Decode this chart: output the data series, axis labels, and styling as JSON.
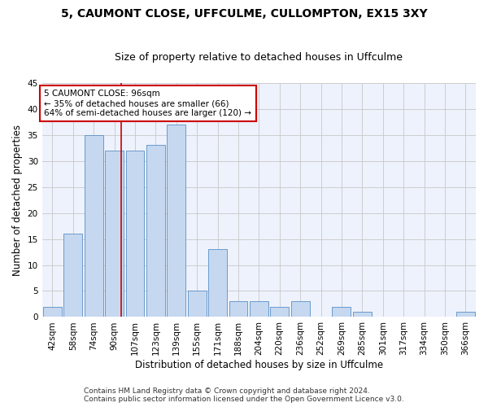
{
  "title": "5, CAUMONT CLOSE, UFFCULME, CULLOMPTON, EX15 3XY",
  "subtitle": "Size of property relative to detached houses in Uffculme",
  "xlabel": "Distribution of detached houses by size in Uffculme",
  "ylabel": "Number of detached properties",
  "bins": [
    "42sqm",
    "58sqm",
    "74sqm",
    "90sqm",
    "107sqm",
    "123sqm",
    "139sqm",
    "155sqm",
    "171sqm",
    "188sqm",
    "204sqm",
    "220sqm",
    "236sqm",
    "252sqm",
    "269sqm",
    "285sqm",
    "301sqm",
    "317sqm",
    "334sqm",
    "350sqm",
    "366sqm"
  ],
  "values": [
    2,
    16,
    35,
    32,
    32,
    33,
    37,
    5,
    13,
    3,
    3,
    2,
    3,
    0,
    2,
    1,
    0,
    0,
    0,
    0,
    1
  ],
  "bar_color": "#c5d8f0",
  "bar_edge_color": "#5a8fc5",
  "vline_color": "#cc0000",
  "annotation_text": "5 CAUMONT CLOSE: 96sqm\n← 35% of detached houses are smaller (66)\n64% of semi-detached houses are larger (120) →",
  "annotation_box_color": "#ffffff",
  "annotation_box_edge": "#cc0000",
  "ylim": [
    0,
    45
  ],
  "yticks": [
    0,
    5,
    10,
    15,
    20,
    25,
    30,
    35,
    40,
    45
  ],
  "footer_line1": "Contains HM Land Registry data © Crown copyright and database right 2024.",
  "footer_line2": "Contains public sector information licensed under the Open Government Licence v3.0.",
  "bg_color": "#eef2fc",
  "grid_color": "#c8c8c8",
  "title_fontsize": 10,
  "subtitle_fontsize": 9,
  "axis_label_fontsize": 8.5,
  "tick_fontsize": 7.5,
  "annotation_fontsize": 7.5,
  "footer_fontsize": 6.5,
  "vline_pos": 3.35
}
